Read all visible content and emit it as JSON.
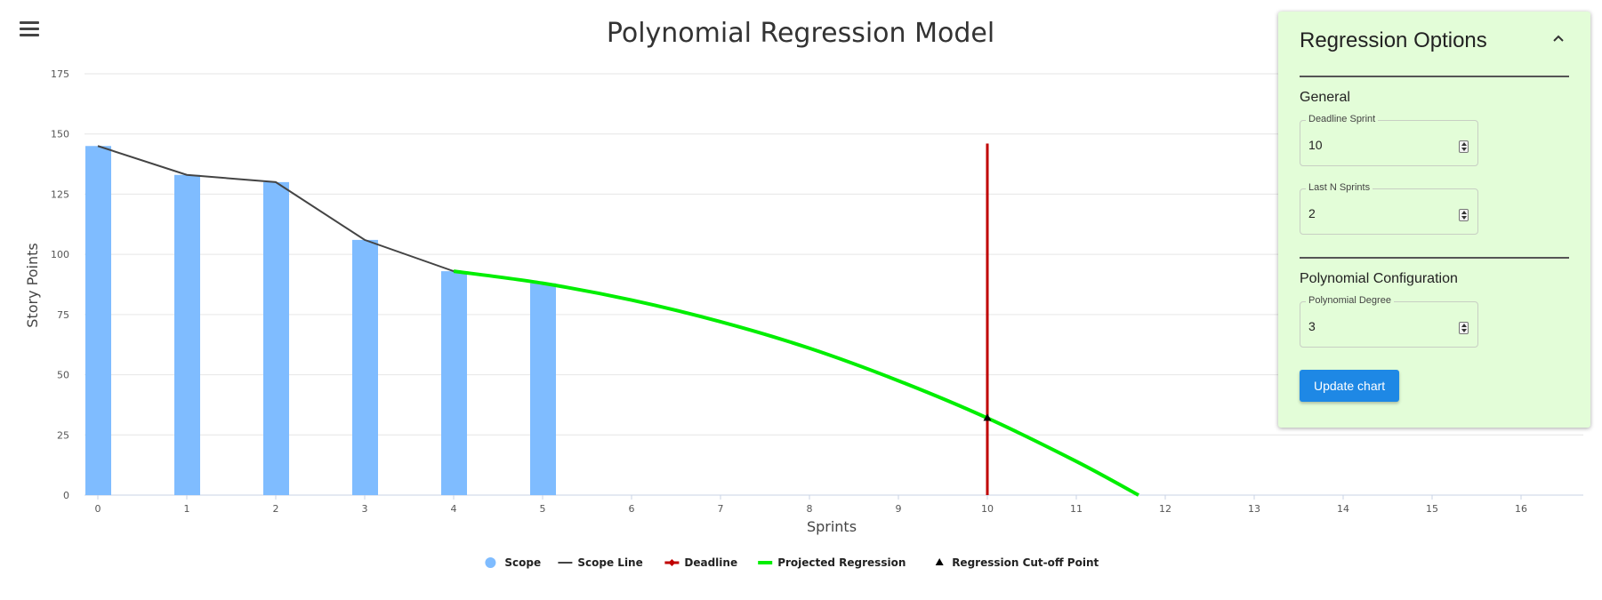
{
  "chart_data": {
    "type": "bar",
    "title": "Polynomial Regression Model",
    "xlabel": "Sprints",
    "ylabel": "Story Points",
    "x_ticks": [
      0,
      1,
      2,
      3,
      4,
      5,
      6,
      7,
      8,
      9,
      10,
      11,
      12,
      13,
      14,
      15,
      16
    ],
    "xlim": [
      -0.15,
      16.7
    ],
    "ylim": [
      0,
      175
    ],
    "y_ticks": [
      0,
      25,
      50,
      75,
      100,
      125,
      150,
      175
    ],
    "grid": true,
    "legend_position": "bottom",
    "series": [
      {
        "name": "Scope",
        "type": "bar",
        "color": "#7fbcff",
        "x": [
          0,
          1,
          2,
          3,
          4,
          5
        ],
        "values": [
          145,
          133,
          130,
          106,
          93,
          88
        ]
      },
      {
        "name": "Scope Line",
        "type": "line",
        "color": "#444444",
        "x": [
          0,
          1,
          2,
          3,
          4
        ],
        "values": [
          145,
          133,
          130,
          106,
          93
        ]
      },
      {
        "name": "Deadline",
        "type": "vline",
        "color": "#c00000",
        "x": 10,
        "values": [
          0,
          146
        ]
      },
      {
        "name": "Projected Regression",
        "type": "line",
        "color": "#00ee00",
        "x": [
          4,
          5,
          6,
          7,
          8,
          9,
          10,
          11,
          11.7
        ],
        "values": [
          93,
          88,
          81,
          72,
          61,
          47.5,
          32,
          14,
          0
        ]
      },
      {
        "name": "Regression Cut-off Point",
        "type": "point",
        "color": "#000000",
        "x": 10,
        "values": 32
      }
    ]
  },
  "menu_icon": "hamburger-menu-icon",
  "panel": {
    "title": "Regression Options",
    "collapse_icon": "chevron-up-icon",
    "general_title": "General",
    "deadline_label": "Deadline Sprint",
    "deadline_value": "10",
    "lastn_label": "Last N Sprints",
    "lastn_value": "2",
    "poly_title": "Polynomial Configuration",
    "degree_label": "Polynomial Degree",
    "degree_value": "3",
    "update_label": "Update chart"
  }
}
